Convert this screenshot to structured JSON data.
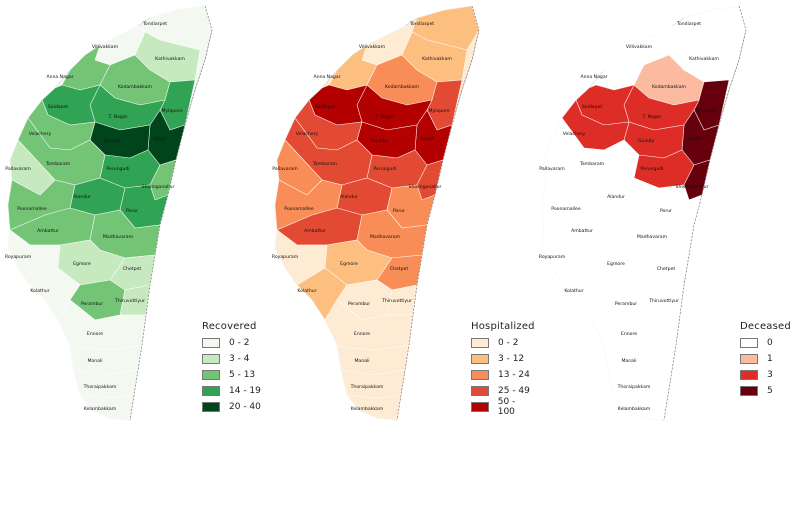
{
  "maps": [
    {
      "id": "recovered",
      "legend": {
        "title": "Recovered",
        "classes": [
          {
            "label": "0 - 2",
            "color": "#f3f9f1"
          },
          {
            "label": "3 - 4",
            "color": "#c7e9c0"
          },
          {
            "label": "5 - 13",
            "color": "#74c476"
          },
          {
            "label": "14 - 19",
            "color": "#31a354"
          },
          {
            "label": "20 - 40",
            "color": "#00441b"
          }
        ]
      }
    },
    {
      "id": "hospitalized",
      "legend": {
        "title": "Hospitalized",
        "classes": [
          {
            "label": "0 - 2",
            "color": "#fdebd3"
          },
          {
            "label": "3 - 12",
            "color": "#fdbf80"
          },
          {
            "label": "13 - 24",
            "color": "#f88d57"
          },
          {
            "label": "25 - 49",
            "color": "#e34a33"
          },
          {
            "label": "50 - 100",
            "color": "#b30000"
          }
        ]
      }
    },
    {
      "id": "deceased",
      "legend": {
        "title": "Deceased",
        "classes": [
          {
            "label": "0",
            "color": "#ffffff"
          },
          {
            "label": "1",
            "color": "#fcbba1"
          },
          {
            "label": "3",
            "color": "#de2d26"
          },
          {
            "label": "5",
            "color": "#67000d"
          }
        ]
      }
    }
  ],
  "places": [
    "Tondiarpet",
    "Kathivakkam",
    "Villivakkam",
    "Anna Nagar",
    "Kodambakkam",
    "Mylapore",
    "T. Nagar",
    "Saidapet",
    "Adyar",
    "Guindy",
    "Velachery",
    "Perungudi",
    "Sholinganallur",
    "Tambaram",
    "Pallavaram",
    "Alandur",
    "Porur",
    "Poonamallee",
    "Ambattur",
    "Madhavaram",
    "Royapuram",
    "Egmore",
    "Chetpet",
    "Kolathur",
    "Perambur",
    "Thiruvottiyur",
    "Ennore",
    "Manali",
    "Thoraipakkam",
    "Kelambakkam"
  ]
}
